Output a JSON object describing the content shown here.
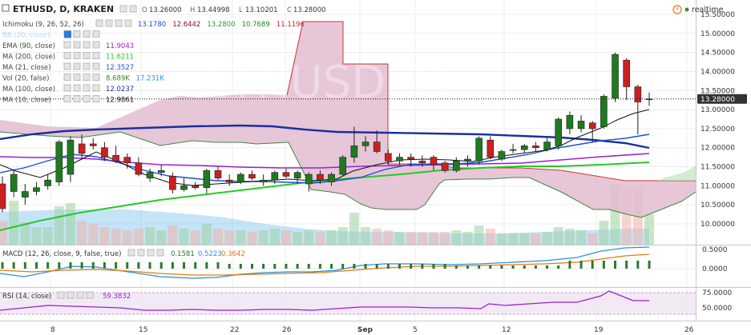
{
  "header": {
    "symbol": "ETHUSD, D, KRAKEN",
    "ohlc_labels": [
      "O",
      "H",
      "L",
      "C"
    ],
    "ohlc_values": [
      "13.26000",
      "13.44998",
      "13.10201",
      "13.28000"
    ],
    "realtime_label": "realtime"
  },
  "watermark": "ETHUSD, D",
  "legend": [
    {
      "label": "Ichimoku (9, 26, 52, 26)",
      "values": [
        {
          "text": "13.1780",
          "color": "#1c4fd6"
        },
        {
          "text": "12.6442",
          "color": "#8b0a1a"
        },
        {
          "text": "13.2800",
          "color": "#2b9a2b"
        },
        {
          "text": "10.7689",
          "color": "#1a8a1a"
        },
        {
          "text": "11.1196",
          "color": "#d21f1f"
        }
      ]
    },
    {
      "label": "BB (20, close)",
      "values": []
    },
    {
      "label": "EMA (90, close)",
      "values": [
        {
          "text": "11.9043",
          "color": "#9b1fd6"
        }
      ]
    },
    {
      "label": "MA (200, close)",
      "values": [
        {
          "text": "11.6211",
          "color": "#22cc22"
        }
      ]
    },
    {
      "label": "MA (21, close)",
      "values": [
        {
          "text": "12.3527",
          "color": "#1a4fd6"
        }
      ]
    },
    {
      "label": "Vol (20, false)",
      "values": [
        {
          "text": "8.689K",
          "color": "#2b8a2b"
        },
        {
          "text": "17.231K",
          "color": "#2a8fdd"
        }
      ]
    },
    {
      "label": "MA (100, close)",
      "values": [
        {
          "text": "12.0237",
          "color": "#1a2fa0"
        }
      ]
    },
    {
      "label": "MA (10, close)",
      "values": [
        {
          "text": "12.9861",
          "color": "#111111"
        }
      ]
    }
  ],
  "price_axis": {
    "ticks": [
      "15.50000",
      "15.00000",
      "14.50000",
      "14.00000",
      "13.50000",
      "13.00000",
      "12.50000",
      "12.00000",
      "11.50000",
      "11.00000",
      "10.50000",
      "10.00000"
    ],
    "current": "13.28000",
    "current_value": 13.28
  },
  "macd": {
    "label": "MACD (12, 26, close, 9, false, true)",
    "values": [
      {
        "text": "0.1581",
        "color": "#1a7a1a"
      },
      {
        "text": "0.5223",
        "color": "#2a8fdd"
      },
      {
        "text": "0.3642",
        "color": "#e07b10"
      }
    ],
    "ticks": [
      "0.5000",
      "0.0000"
    ]
  },
  "rsi": {
    "label": "RSI (14, close)",
    "value": "59.3832",
    "ticks": [
      "75.0000",
      "50.0000"
    ]
  },
  "time_axis": {
    "ticks": [
      "8",
      "15",
      "22",
      "26",
      "Sep",
      "5",
      "12",
      "19",
      "26"
    ]
  },
  "chart_data": {
    "type": "candlestick",
    "instrument": "ETHUSD, D, KRAKEN",
    "ylim": [
      9.7,
      15.6
    ],
    "candles": [
      {
        "o": 11.05,
        "h": 11.25,
        "l": 10.3,
        "c": 10.4
      },
      {
        "o": 10.85,
        "h": 11.4,
        "l": 10.7,
        "c": 11.3
      },
      {
        "o": 10.7,
        "h": 11.05,
        "l": 10.5,
        "c": 10.85
      },
      {
        "o": 10.85,
        "h": 11.1,
        "l": 10.75,
        "c": 10.95
      },
      {
        "o": 11.0,
        "h": 11.3,
        "l": 10.9,
        "c": 11.15
      },
      {
        "o": 11.1,
        "h": 12.2,
        "l": 11.0,
        "c": 12.15
      },
      {
        "o": 11.3,
        "h": 12.3,
        "l": 11.1,
        "c": 12.2
      },
      {
        "o": 12.1,
        "h": 12.35,
        "l": 11.7,
        "c": 11.85
      },
      {
        "o": 12.1,
        "h": 12.25,
        "l": 11.95,
        "c": 12.05
      },
      {
        "o": 12.0,
        "h": 12.15,
        "l": 11.65,
        "c": 11.75
      },
      {
        "o": 11.8,
        "h": 12.05,
        "l": 11.6,
        "c": 11.65
      },
      {
        "o": 11.75,
        "h": 11.85,
        "l": 11.45,
        "c": 11.6
      },
      {
        "o": 11.6,
        "h": 11.75,
        "l": 11.25,
        "c": 11.3
      },
      {
        "o": 11.2,
        "h": 11.45,
        "l": 11.1,
        "c": 11.35
      },
      {
        "o": 11.35,
        "h": 11.55,
        "l": 11.25,
        "c": 11.4
      },
      {
        "o": 11.25,
        "h": 11.35,
        "l": 10.8,
        "c": 10.9
      },
      {
        "o": 10.9,
        "h": 11.2,
        "l": 10.85,
        "c": 11.0
      },
      {
        "o": 11.0,
        "h": 11.1,
        "l": 10.9,
        "c": 10.95
      },
      {
        "o": 10.95,
        "h": 11.45,
        "l": 10.8,
        "c": 11.4
      },
      {
        "o": 11.4,
        "h": 11.5,
        "l": 11.15,
        "c": 11.2
      },
      {
        "o": 11.15,
        "h": 11.3,
        "l": 11.0,
        "c": 11.1
      },
      {
        "o": 11.1,
        "h": 11.35,
        "l": 11.05,
        "c": 11.3
      },
      {
        "o": 11.3,
        "h": 11.4,
        "l": 11.15,
        "c": 11.2
      },
      {
        "o": 11.1,
        "h": 11.3,
        "l": 11.0,
        "c": 11.15
      },
      {
        "o": 11.15,
        "h": 11.4,
        "l": 11.05,
        "c": 11.35
      },
      {
        "o": 11.35,
        "h": 11.45,
        "l": 11.2,
        "c": 11.25
      },
      {
        "o": 11.2,
        "h": 11.4,
        "l": 11.05,
        "c": 11.35
      },
      {
        "o": 11.05,
        "h": 11.35,
        "l": 10.85,
        "c": 11.3
      },
      {
        "o": 11.3,
        "h": 11.4,
        "l": 11.05,
        "c": 11.15
      },
      {
        "o": 11.1,
        "h": 11.35,
        "l": 11.0,
        "c": 11.3
      },
      {
        "o": 11.3,
        "h": 11.8,
        "l": 11.25,
        "c": 11.75
      },
      {
        "o": 11.75,
        "h": 12.55,
        "l": 11.6,
        "c": 12.05
      },
      {
        "o": 12.05,
        "h": 12.3,
        "l": 11.9,
        "c": 12.15
      },
      {
        "o": 12.15,
        "h": 12.45,
        "l": 11.85,
        "c": 11.9
      },
      {
        "o": 11.85,
        "h": 11.95,
        "l": 11.55,
        "c": 11.65
      },
      {
        "o": 11.65,
        "h": 11.85,
        "l": 11.55,
        "c": 11.75
      },
      {
        "o": 11.75,
        "h": 11.85,
        "l": 11.5,
        "c": 11.7
      },
      {
        "o": 11.65,
        "h": 11.8,
        "l": 11.5,
        "c": 11.6
      },
      {
        "o": 11.75,
        "h": 11.8,
        "l": 11.4,
        "c": 11.55
      },
      {
        "o": 11.6,
        "h": 11.65,
        "l": 11.35,
        "c": 11.4
      },
      {
        "o": 11.4,
        "h": 11.75,
        "l": 11.35,
        "c": 11.65
      },
      {
        "o": 11.65,
        "h": 11.8,
        "l": 11.5,
        "c": 11.7
      },
      {
        "o": 11.65,
        "h": 12.3,
        "l": 11.55,
        "c": 12.25
      },
      {
        "o": 12.2,
        "h": 12.3,
        "l": 11.7,
        "c": 11.75
      },
      {
        "o": 11.7,
        "h": 11.95,
        "l": 11.65,
        "c": 11.9
      },
      {
        "o": 11.95,
        "h": 12.1,
        "l": 11.85,
        "c": 11.95
      },
      {
        "o": 11.95,
        "h": 12.1,
        "l": 11.85,
        "c": 12.05
      },
      {
        "o": 12.05,
        "h": 12.15,
        "l": 11.9,
        "c": 12.0
      },
      {
        "o": 11.95,
        "h": 12.25,
        "l": 11.9,
        "c": 12.15
      },
      {
        "o": 12.05,
        "h": 12.8,
        "l": 11.95,
        "c": 12.75
      },
      {
        "o": 12.5,
        "h": 12.95,
        "l": 12.35,
        "c": 12.85
      },
      {
        "o": 12.5,
        "h": 12.85,
        "l": 12.4,
        "c": 12.7
      },
      {
        "o": 12.65,
        "h": 12.7,
        "l": 12.15,
        "c": 12.5
      },
      {
        "o": 12.55,
        "h": 13.4,
        "l": 12.5,
        "c": 13.35
      },
      {
        "o": 13.3,
        "h": 14.5,
        "l": 13.2,
        "c": 14.45
      },
      {
        "o": 14.3,
        "h": 14.35,
        "l": 13.25,
        "c": 13.6
      },
      {
        "o": 13.6,
        "h": 13.65,
        "l": 12.35,
        "c": 13.2
      },
      {
        "o": 13.26,
        "h": 13.45,
        "l": 13.1,
        "c": 13.28
      }
    ],
    "indicators": [
      "Ichimoku (9, 26, 52, 26)",
      "BB (20, close)",
      "EMA (90, close)",
      "MA (200, close)",
      "MA (21, close)",
      "Vol (20, false)",
      "MA (100, close)",
      "MA (10, close)"
    ],
    "colors": {
      "up": "#1f7a1f",
      "down": "#cc1f1f",
      "cloud": "#e2bcd0",
      "ma100": "#1a2fa0",
      "ma200": "#22cc22",
      "ema90": "#9b1fd6",
      "ma21": "#1a4fd6",
      "ma10": "#111111"
    }
  }
}
